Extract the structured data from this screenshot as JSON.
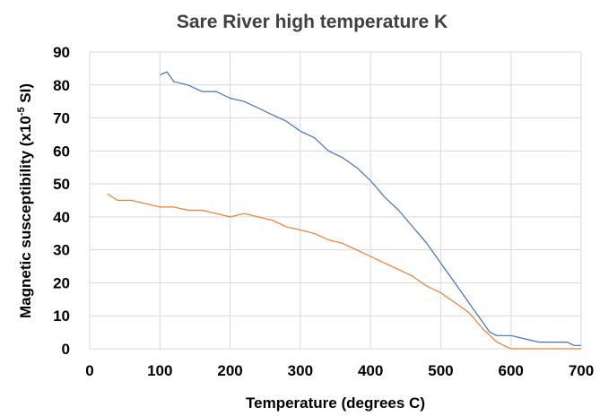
{
  "chart_data": {
    "type": "line",
    "title": "Sare River high temperature K",
    "xlabel": "Temperature (degrees C)",
    "ylabel_main": "Magnetic susceptibility (x10",
    "ylabel_sup": "-5",
    "ylabel_end": " SI)",
    "xlim": [
      0,
      700
    ],
    "ylim": [
      0,
      90
    ],
    "x_ticks": [
      0,
      100,
      200,
      300,
      400,
      500,
      600,
      700
    ],
    "y_ticks": [
      0,
      10,
      20,
      30,
      40,
      50,
      60,
      70,
      80,
      90
    ],
    "grid": true,
    "legend": "none",
    "series": [
      {
        "color": "#4472c4",
        "points": [
          [
            100,
            83
          ],
          [
            110,
            84
          ],
          [
            120,
            81
          ],
          [
            140,
            80
          ],
          [
            160,
            78
          ],
          [
            180,
            78
          ],
          [
            200,
            76
          ],
          [
            220,
            75
          ],
          [
            240,
            73
          ],
          [
            260,
            71
          ],
          [
            280,
            69
          ],
          [
            300,
            66
          ],
          [
            320,
            64
          ],
          [
            340,
            60
          ],
          [
            360,
            58
          ],
          [
            380,
            55
          ],
          [
            400,
            51
          ],
          [
            420,
            46
          ],
          [
            440,
            42
          ],
          [
            460,
            37
          ],
          [
            480,
            32
          ],
          [
            500,
            26
          ],
          [
            520,
            20
          ],
          [
            540,
            14
          ],
          [
            560,
            8
          ],
          [
            570,
            5
          ],
          [
            580,
            4
          ],
          [
            600,
            4
          ],
          [
            620,
            3
          ],
          [
            640,
            2
          ],
          [
            660,
            2
          ],
          [
            680,
            2
          ],
          [
            690,
            1
          ],
          [
            700,
            1
          ]
        ]
      },
      {
        "color": "#ed7d31",
        "points": [
          [
            25,
            47
          ],
          [
            40,
            45
          ],
          [
            60,
            45
          ],
          [
            80,
            44
          ],
          [
            100,
            43
          ],
          [
            120,
            43
          ],
          [
            140,
            42
          ],
          [
            160,
            42
          ],
          [
            180,
            41
          ],
          [
            200,
            40
          ],
          [
            220,
            41
          ],
          [
            240,
            40
          ],
          [
            260,
            39
          ],
          [
            280,
            37
          ],
          [
            300,
            36
          ],
          [
            320,
            35
          ],
          [
            340,
            33
          ],
          [
            360,
            32
          ],
          [
            380,
            30
          ],
          [
            400,
            28
          ],
          [
            420,
            26
          ],
          [
            440,
            24
          ],
          [
            460,
            22
          ],
          [
            480,
            19
          ],
          [
            500,
            17
          ],
          [
            520,
            14
          ],
          [
            540,
            11
          ],
          [
            560,
            6
          ],
          [
            580,
            2
          ],
          [
            600,
            0
          ],
          [
            620,
            0
          ],
          [
            650,
            0
          ],
          [
            700,
            0
          ]
        ]
      }
    ]
  }
}
